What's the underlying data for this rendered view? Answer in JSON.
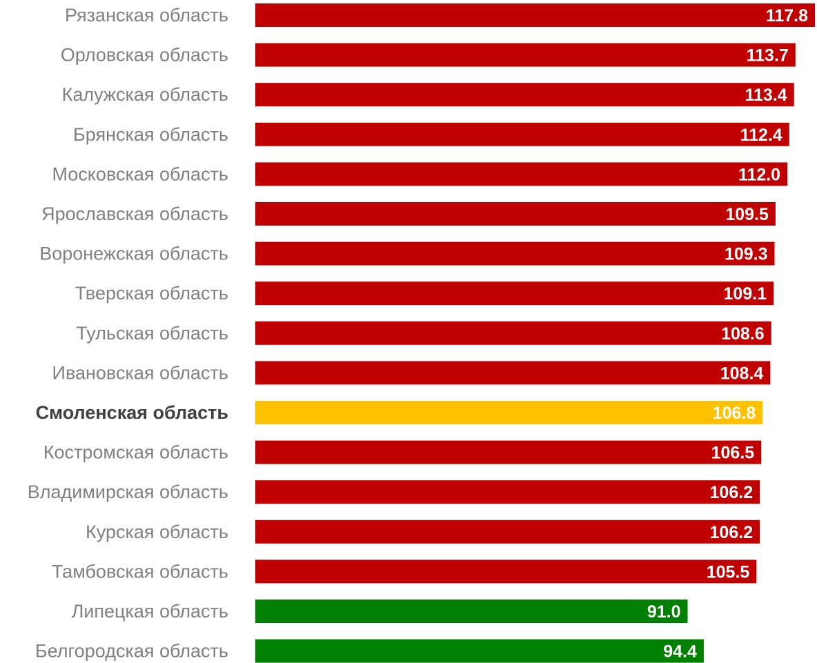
{
  "chart_data": {
    "type": "bar",
    "orientation": "horizontal",
    "title": "",
    "xlabel": "",
    "ylabel": "",
    "grid": false,
    "legend": "none",
    "categories": [
      "Рязанская область",
      "Орловская область",
      "Калужская область",
      "Брянская область",
      "Московская область",
      "Ярославская область",
      "Воронежская область",
      "Тверская область",
      "Тульская область",
      "Ивановская область",
      "Смоленская область",
      "Костромская область",
      "Владимирская область",
      "Курская область",
      "Тамбовская область",
      "Липецкая область",
      "Белгородская область"
    ],
    "values": [
      117.8,
      113.7,
      113.4,
      112.4,
      112.0,
      109.5,
      109.3,
      109.1,
      108.6,
      108.4,
      106.8,
      106.5,
      106.2,
      106.2,
      105.5,
      91.0,
      94.4
    ],
    "value_labels": [
      "117.8",
      "113.7",
      "113.4",
      "112.4",
      "112.0",
      "109.5",
      "109.3",
      "109.1",
      "108.6",
      "108.4",
      "106.8",
      "106.5",
      "106.2",
      "106.2",
      "105.5",
      "91.0",
      "94.4"
    ],
    "bar_colors": [
      "#c00000",
      "#c00000",
      "#c00000",
      "#c00000",
      "#c00000",
      "#c00000",
      "#c00000",
      "#c00000",
      "#c00000",
      "#c00000",
      "#ffc000",
      "#c00000",
      "#c00000",
      "#c00000",
      "#c00000",
      "#008000",
      "#008000"
    ],
    "highlighted_category": "Смоленская область",
    "colors": {
      "above": "#c00000",
      "highlight": "#ffc000",
      "below": "#008000",
      "label_text": "#808080",
      "highlight_label_text": "#404040",
      "value_text": "#ffffff"
    }
  }
}
